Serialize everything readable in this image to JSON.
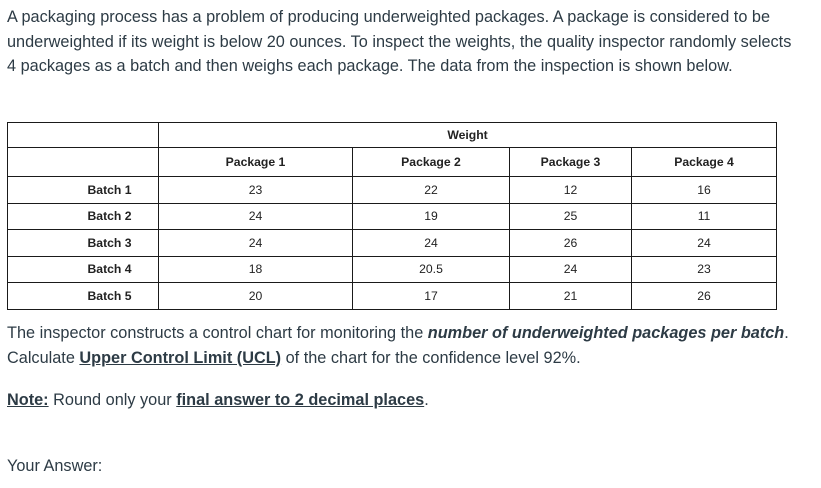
{
  "intro": "A packaging process has a problem of producing underweighted packages. A package is considered to be underweighted if its weight is below 20 ounces.  To inspect the weights, the quality inspector randomly selects 4 packages as a batch and then weighs each package. The data from the inspection is shown below.",
  "table": {
    "group_header": "Weight",
    "columns": [
      "Package 1",
      "Package 2",
      "Package 3",
      "Package 4"
    ],
    "rows": [
      {
        "label": "Batch 1",
        "values": [
          "23",
          "22",
          "12",
          "16"
        ]
      },
      {
        "label": "Batch 2",
        "values": [
          "24",
          "19",
          "25",
          "11"
        ]
      },
      {
        "label": "Batch 3",
        "values": [
          "24",
          "24",
          "26",
          "24"
        ]
      },
      {
        "label": "Batch 4",
        "values": [
          "18",
          "20.5",
          "24",
          "23"
        ]
      },
      {
        "label": "Batch 5",
        "values": [
          "20",
          "17",
          "21",
          "26"
        ]
      }
    ]
  },
  "question": {
    "part1": "The inspector constructs a control chart for monitoring the ",
    "emphasis": "number of  underweighted packages per batch",
    "part2": ". Calculate ",
    "ucl_term": "Upper Control Limit (UCL)",
    "part3": " of the chart for the confidence level 92%."
  },
  "note": {
    "label": "Note:",
    "text1": " Round only your ",
    "emphasis": "final answer to 2 decimal places",
    "text2": "."
  },
  "answer_label": "Your Answer:"
}
